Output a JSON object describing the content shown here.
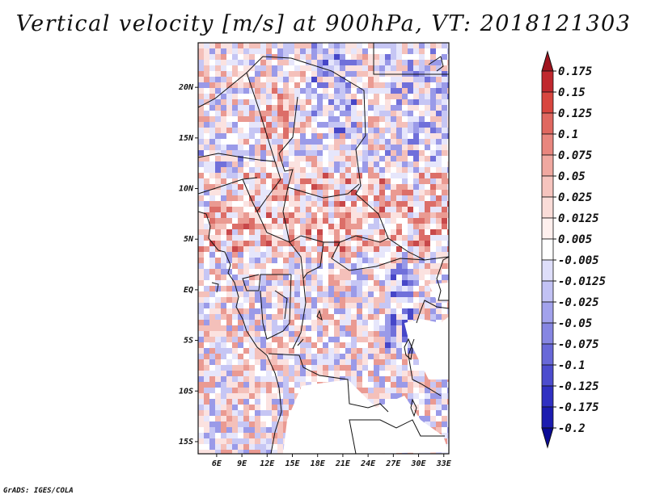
{
  "title": "Vertical velocity [m/s] at 900hPa, VT: 2018121303",
  "footer": "GrADS: IGES/COLA",
  "x_ticks": [
    "6E",
    "9E",
    "12E",
    "15E",
    "18E",
    "21E",
    "24E",
    "27E",
    "30E",
    "33E"
  ],
  "y_ticks": [
    "20N",
    "15N",
    "10N",
    "5N",
    "EQ",
    "5S",
    "10S",
    "15S"
  ],
  "colorbar": {
    "labels": [
      "0.175",
      "0.15",
      "0.125",
      "0.1",
      "0.075",
      "0.05",
      "0.025",
      "0.0125",
      "0.005",
      "-0.005",
      "-0.0125",
      "-0.025",
      "-0.05",
      "-0.075",
      "-0.1",
      "-0.125",
      "-0.175",
      "-0.2"
    ],
    "colors": [
      "#a0141e",
      "#c0282e",
      "#d8463f",
      "#e06860",
      "#e8867e",
      "#f0a8a0",
      "#f6c4be",
      "#fadcd8",
      "#fff0ee",
      "#ffffff",
      "#dedefa",
      "#c2c2f4",
      "#a2a2ec",
      "#8686e2",
      "#6868d8",
      "#4c4cce",
      "#3030c2",
      "#1c1cb0",
      "#0a0a96"
    ]
  },
  "map": {
    "lon_range": [
      3.8,
      33.6
    ],
    "lat_range": [
      -16.2,
      24.4
    ],
    "field": "vertical velocity",
    "level": "900hPa"
  }
}
